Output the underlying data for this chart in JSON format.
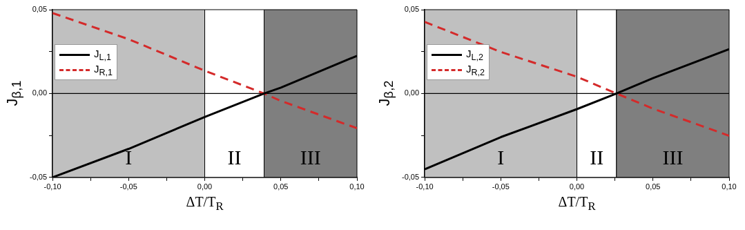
{
  "chart_data": [
    {
      "type": "line",
      "xlabel": "ΔT/T$_{R}$",
      "ylabel": "J$_{β,1}$",
      "x": [
        -0.1,
        -0.05,
        0,
        0.039,
        0.05,
        0.1
      ],
      "series": [
        {
          "name": "J$_{L,1}$",
          "color": "#000000",
          "line_style": "solid",
          "values": [
            -0.05,
            -0.033,
            -0.014,
            0,
            0.0035,
            0.0225
          ]
        },
        {
          "name": "J$_{R,1}$",
          "color": "#d42a2a",
          "line_style": "dashed",
          "values": [
            0.048,
            0.0324,
            0.0136,
            0,
            -0.0044,
            -0.0207
          ]
        }
      ],
      "xlim": [
        -0.1,
        0.1
      ],
      "xticks": [
        {
          "value": -0.1,
          "label": "-0,10"
        },
        {
          "value": -0.075,
          "label": null
        },
        {
          "value": -0.05,
          "label": "-0,05"
        },
        {
          "value": -0.025,
          "label": null
        },
        {
          "value": 0,
          "label": "0,00"
        },
        {
          "value": 0.025,
          "label": null
        },
        {
          "value": 0.05,
          "label": "0,05"
        },
        {
          "value": 0.075,
          "label": null
        },
        {
          "value": 0.1,
          "label": "0,10"
        }
      ],
      "ylim": [
        -0.05,
        0.05
      ],
      "yticks": [
        {
          "value": -0.05,
          "label": "-0,05"
        },
        {
          "value": -0.025,
          "label": null
        },
        {
          "value": 0,
          "label": "0,00"
        },
        {
          "value": 0.025,
          "label": null
        },
        {
          "value": 0.05,
          "label": "0,05"
        }
      ],
      "bands": [
        {
          "axis": "x",
          "from": -0.1,
          "to": 0,
          "label": "I",
          "color": "#c0c0c0"
        },
        {
          "axis": "x",
          "from": 0,
          "to": 0.039,
          "label": "II",
          "color": "#ffffff"
        },
        {
          "axis": "x",
          "from": 0.039,
          "to": 0.1,
          "label": "III",
          "color": "#7f7f7f"
        }
      ],
      "ref_lines": [
        {
          "axis": "y",
          "value": 0,
          "label": null,
          "color": "#000000"
        }
      ],
      "legend": "top left",
      "grid": false
    },
    {
      "type": "line",
      "xlabel": "ΔT/T$_{R}$",
      "ylabel": "J$_{β,2}$",
      "x": [
        -0.1,
        -0.05,
        0,
        0.026,
        0.05,
        0.1
      ],
      "series": [
        {
          "name": "J$_{L,2}$",
          "color": "#000000",
          "line_style": "solid",
          "values": [
            -0.0452,
            -0.026,
            -0.0093,
            0,
            0.0092,
            0.0265
          ]
        },
        {
          "name": "J$_{R,2}$",
          "color": "#d42a2a",
          "line_style": "dashed",
          "values": [
            0.0427,
            0.0248,
            0.01,
            0,
            -0.009,
            -0.0252
          ]
        }
      ],
      "xlim": [
        -0.1,
        0.1
      ],
      "xticks": [
        {
          "value": -0.1,
          "label": "-0,10"
        },
        {
          "value": -0.075,
          "label": null
        },
        {
          "value": -0.05,
          "label": "-0,05"
        },
        {
          "value": -0.025,
          "label": null
        },
        {
          "value": 0,
          "label": "0,00"
        },
        {
          "value": 0.025,
          "label": null
        },
        {
          "value": 0.05,
          "label": "0,05"
        },
        {
          "value": 0.075,
          "label": null
        },
        {
          "value": 0.1,
          "label": "0,10"
        }
      ],
      "ylim": [
        -0.05,
        0.05
      ],
      "yticks": [
        {
          "value": -0.05,
          "label": "-0,05"
        },
        {
          "value": -0.025,
          "label": null
        },
        {
          "value": 0,
          "label": "0,00"
        },
        {
          "value": 0.025,
          "label": null
        },
        {
          "value": 0.05,
          "label": "0,05"
        }
      ],
      "bands": [
        {
          "axis": "x",
          "from": -0.1,
          "to": 0,
          "label": "I",
          "color": "#c0c0c0"
        },
        {
          "axis": "x",
          "from": 0,
          "to": 0.026,
          "label": "II",
          "color": "#ffffff"
        },
        {
          "axis": "x",
          "from": 0.026,
          "to": 0.1,
          "label": "III",
          "color": "#7f7f7f"
        }
      ],
      "ref_lines": [
        {
          "axis": "y",
          "value": 0,
          "label": null,
          "color": "#000000"
        }
      ],
      "legend": "top left",
      "grid": false
    }
  ]
}
